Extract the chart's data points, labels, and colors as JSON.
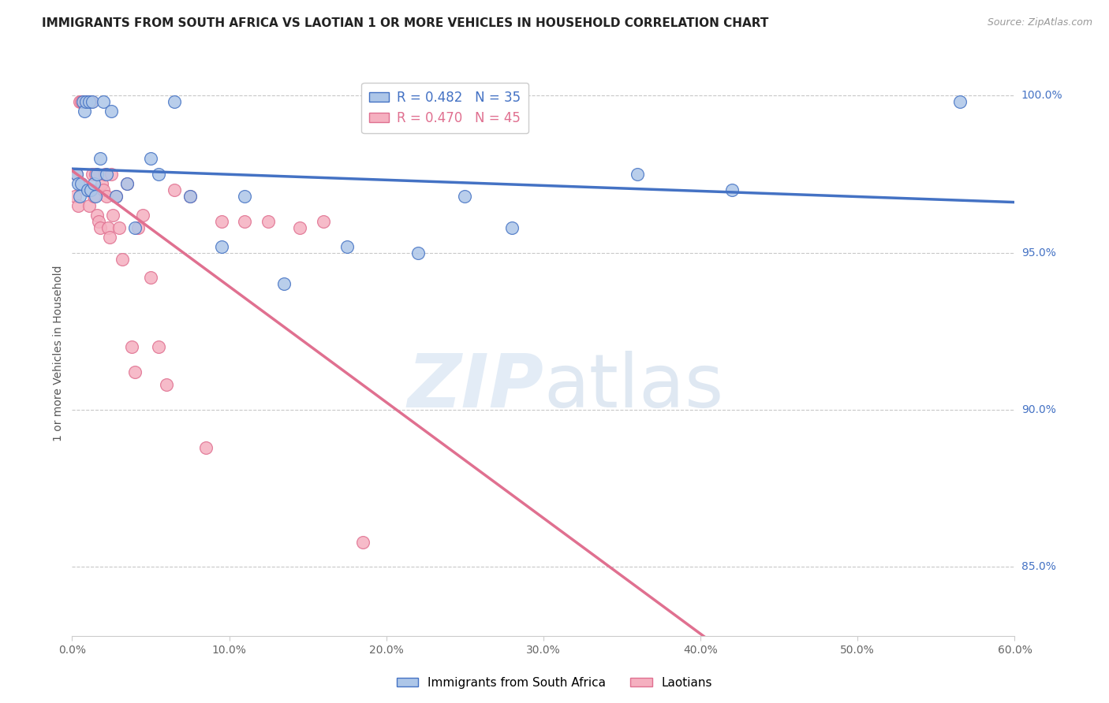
{
  "title": "IMMIGRANTS FROM SOUTH AFRICA VS LAOTIAN 1 OR MORE VEHICLES IN HOUSEHOLD CORRELATION CHART",
  "source": "Source: ZipAtlas.com",
  "ylabel": "1 or more Vehicles in Household",
  "legend_label_blue": "Immigrants from South Africa",
  "legend_label_pink": "Laotians",
  "r_blue": 0.482,
  "n_blue": 35,
  "r_pink": 0.47,
  "n_pink": 45,
  "color_blue": "#adc6e8",
  "color_pink": "#f5b0c0",
  "color_line_blue": "#4472c4",
  "color_line_pink": "#e07090",
  "color_right_axis": "#4472c4",
  "xlim": [
    0.0,
    0.6
  ],
  "ylim": [
    0.828,
    1.008
  ],
  "yticks_right": [
    1.0,
    0.95,
    0.9,
    0.85
  ],
  "xticks": [
    0.0,
    0.1,
    0.2,
    0.3,
    0.4,
    0.5,
    0.6
  ],
  "xtick_labels": [
    "0.0%",
    "10.0%",
    "20.0%",
    "30.0%",
    "40.0%",
    "50.0%",
    "60.0%"
  ],
  "ytick_labels_right": [
    "100.0%",
    "95.0%",
    "90.0%",
    "85.0%"
  ],
  "blue_x": [
    0.003,
    0.004,
    0.005,
    0.006,
    0.007,
    0.008,
    0.009,
    0.01,
    0.011,
    0.012,
    0.013,
    0.014,
    0.015,
    0.016,
    0.018,
    0.02,
    0.022,
    0.025,
    0.028,
    0.035,
    0.04,
    0.05,
    0.055,
    0.065,
    0.075,
    0.095,
    0.11,
    0.135,
    0.175,
    0.22,
    0.25,
    0.28,
    0.36,
    0.42,
    0.565
  ],
  "blue_y": [
    0.975,
    0.972,
    0.968,
    0.972,
    0.998,
    0.995,
    0.998,
    0.97,
    0.998,
    0.97,
    0.998,
    0.972,
    0.968,
    0.975,
    0.98,
    0.998,
    0.975,
    0.995,
    0.968,
    0.972,
    0.958,
    0.98,
    0.975,
    0.998,
    0.968,
    0.952,
    0.968,
    0.94,
    0.952,
    0.95,
    0.968,
    0.958,
    0.975,
    0.97,
    0.998
  ],
  "pink_x": [
    0.002,
    0.003,
    0.004,
    0.005,
    0.006,
    0.007,
    0.008,
    0.009,
    0.01,
    0.011,
    0.012,
    0.013,
    0.014,
    0.015,
    0.016,
    0.017,
    0.018,
    0.019,
    0.02,
    0.021,
    0.022,
    0.023,
    0.024,
    0.025,
    0.026,
    0.028,
    0.03,
    0.032,
    0.035,
    0.038,
    0.04,
    0.042,
    0.045,
    0.05,
    0.055,
    0.06,
    0.065,
    0.075,
    0.085,
    0.095,
    0.11,
    0.125,
    0.145,
    0.16,
    0.185
  ],
  "pink_y": [
    0.968,
    0.975,
    0.965,
    0.998,
    0.998,
    0.998,
    0.998,
    0.998,
    0.998,
    0.965,
    0.998,
    0.975,
    0.968,
    0.975,
    0.962,
    0.96,
    0.958,
    0.972,
    0.97,
    0.975,
    0.968,
    0.958,
    0.955,
    0.975,
    0.962,
    0.968,
    0.958,
    0.948,
    0.972,
    0.92,
    0.912,
    0.958,
    0.962,
    0.942,
    0.92,
    0.908,
    0.97,
    0.968,
    0.888,
    0.96,
    0.96,
    0.96,
    0.958,
    0.96,
    0.858
  ],
  "watermark_zip": "ZIP",
  "watermark_atlas": "atlas",
  "background_color": "#ffffff",
  "grid_color": "#c8c8c8"
}
